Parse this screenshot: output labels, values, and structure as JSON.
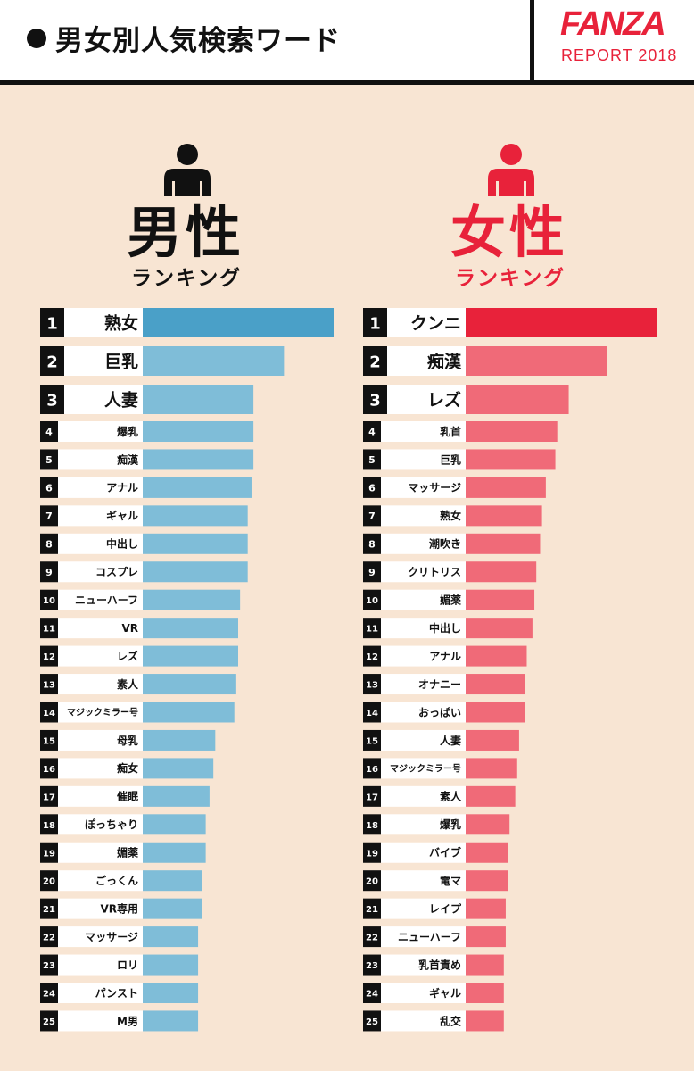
{
  "header": {
    "title": "男女別人気検索ワード",
    "brand": "FANZA",
    "report": "REPORT 2018"
  },
  "colors": {
    "male_top": "#4aa0c8",
    "male": "#7fbdd8",
    "female_top": "#e8223a",
    "female": "#f06a78",
    "rank_box": "#111111"
  },
  "icons": {
    "male": "person-icon",
    "female": "person-icon"
  },
  "male_panel": {
    "title": "男性",
    "subtitle": "ランキング"
  },
  "female_panel": {
    "title": "女性",
    "subtitle": "ランキング"
  },
  "chart_data": [
    {
      "type": "bar",
      "orientation": "horizontal",
      "title": "男性 ランキング",
      "ranks": [
        1,
        2,
        3,
        4,
        5,
        6,
        7,
        8,
        9,
        10,
        11,
        12,
        13,
        14,
        15,
        16,
        17,
        18,
        19,
        20,
        21,
        22,
        23,
        24,
        25
      ],
      "categories": [
        "熟女",
        "巨乳",
        "人妻",
        "爆乳",
        "痴漢",
        "アナル",
        "ギャル",
        "中出し",
        "コスプレ",
        "ニューハーフ",
        "VR",
        "レズ",
        "素人",
        "マジックミラー号",
        "母乳",
        "痴女",
        "催眠",
        "ぽっちゃり",
        "媚薬",
        "ごっくん",
        "VR専用",
        "マッサージ",
        "ロリ",
        "パンスト",
        "M男"
      ],
      "values": [
        100,
        74,
        58,
        58,
        58,
        57,
        55,
        55,
        55,
        51,
        50,
        50,
        49,
        48,
        38,
        37,
        35,
        33,
        33,
        31,
        31,
        29,
        29,
        29,
        29
      ]
    },
    {
      "type": "bar",
      "orientation": "horizontal",
      "title": "女性 ランキング",
      "ranks": [
        1,
        2,
        3,
        4,
        5,
        6,
        7,
        8,
        9,
        10,
        11,
        12,
        13,
        14,
        15,
        16,
        17,
        18,
        19,
        20,
        21,
        22,
        23,
        24,
        25
      ],
      "categories": [
        "クンニ",
        "痴漢",
        "レズ",
        "乳首",
        "巨乳",
        "マッサージ",
        "熟女",
        "潮吹き",
        "クリトリス",
        "媚薬",
        "中出し",
        "アナル",
        "オナニー",
        "おっぱい",
        "人妻",
        "マジックミラー号",
        "素人",
        "爆乳",
        "バイブ",
        "電マ",
        "レイプ",
        "ニューハーフ",
        "乳首責め",
        "ギャル",
        "乱交"
      ],
      "values": [
        100,
        74,
        54,
        48,
        47,
        42,
        40,
        39,
        37,
        36,
        35,
        32,
        31,
        31,
        28,
        27,
        26,
        23,
        22,
        22,
        21,
        21,
        20,
        20,
        20
      ]
    }
  ]
}
